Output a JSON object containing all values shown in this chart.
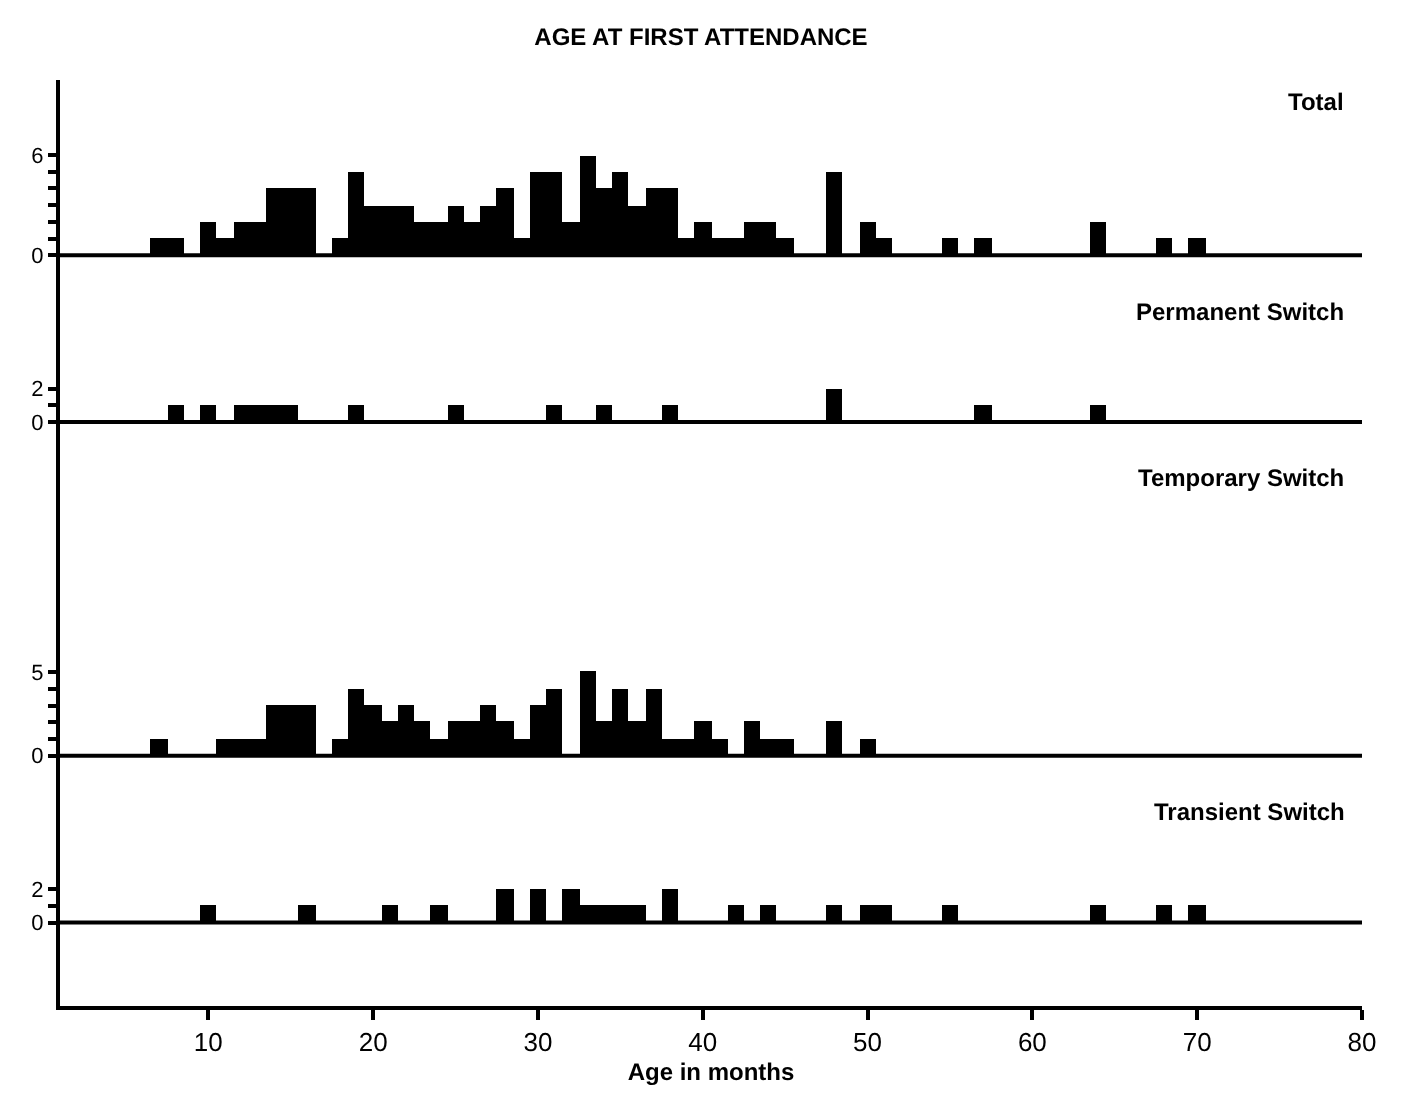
{
  "chart_data": [
    {
      "type": "histogram",
      "title": "AGE AT FIRST ATTENDANCE",
      "subtitle": "Total",
      "color": "#000000",
      "bins": [
        6.5,
        7.5,
        8.5,
        9.5,
        10.5,
        11.5,
        12.5,
        13.5,
        14.5,
        15.5,
        16.5,
        17.5,
        18.5,
        19.5,
        20.5,
        21.5,
        22.5,
        23.5,
        24.5,
        25.5,
        26.5,
        27.5,
        28.5,
        29.5,
        30.5,
        31.5,
        32.5,
        33.5,
        34.5,
        35.5,
        36.5,
        37.5,
        38.5,
        39.5,
        40.5,
        41.5,
        42.5,
        43.5,
        44.5,
        45.5,
        46.5,
        47.5,
        48.5,
        49.5,
        50.5,
        51.5,
        52.5,
        53.5,
        54.5,
        55.5,
        56.5,
        57.5,
        58.5,
        59.5,
        60.5,
        61.5,
        62.5,
        63.5,
        64.5,
        65.5,
        66.5,
        67.5,
        68.5,
        69.5,
        70.5
      ],
      "values": [
        1,
        1,
        0,
        2,
        1,
        2,
        2,
        4,
        4,
        4,
        0,
        1,
        5,
        3,
        3,
        3,
        2,
        2,
        3,
        2,
        3,
        4,
        1,
        5,
        5,
        2,
        6,
        4,
        5,
        3,
        4,
        4,
        1,
        2,
        1,
        1,
        2,
        2,
        1,
        0,
        0,
        5,
        0,
        2,
        1,
        0,
        0,
        0,
        1,
        0,
        1,
        0,
        0,
        0,
        0,
        0,
        0,
        2,
        0,
        0,
        0,
        1,
        0,
        1
      ],
      "xlim": [
        1,
        80
      ],
      "ylim": [
        -2,
        10.5
      ],
      "ref_lines": [
        {
          "axis": "y",
          "value": 0,
          "color": "#000000"
        }
      ],
      "yticks": [
        0,
        {
          "value": 1,
          "label": null
        },
        {
          "value": 2,
          "label": null
        },
        {
          "value": 3,
          "label": null
        },
        {
          "value": 4,
          "label": null
        },
        {
          "value": 5,
          "label": null
        },
        6
      ],
      "tick_labels": "y",
      "grid": false
    },
    {
      "type": "histogram",
      "subtitle": "Permanent Switch",
      "color": "#000000",
      "bins": [
        6.5,
        7.5,
        8.5,
        9.5,
        10.5,
        11.5,
        12.5,
        13.5,
        14.5,
        15.5,
        16.5,
        17.5,
        18.5,
        19.5,
        20.5,
        21.5,
        22.5,
        23.5,
        24.5,
        25.5,
        26.5,
        27.5,
        28.5,
        29.5,
        30.5,
        31.5,
        32.5,
        33.5,
        34.5,
        35.5,
        36.5,
        37.5,
        38.5,
        39.5,
        40.5,
        41.5,
        42.5,
        43.5,
        44.5,
        45.5,
        46.5,
        47.5,
        48.5,
        49.5,
        50.5,
        51.5,
        52.5,
        53.5,
        54.5,
        55.5,
        56.5,
        57.5,
        58.5,
        59.5,
        60.5,
        61.5,
        62.5,
        63.5,
        64.5,
        65.5,
        66.5,
        67.5,
        68.5,
        69.5,
        70.5
      ],
      "values": [
        0,
        1,
        0,
        1,
        0,
        1,
        1,
        1,
        1,
        0,
        0,
        0,
        1,
        0,
        0,
        0,
        0,
        0,
        1,
        0,
        0,
        0,
        0,
        0,
        1,
        0,
        0,
        1,
        0,
        0,
        0,
        1,
        0,
        0,
        0,
        0,
        0,
        0,
        0,
        0,
        0,
        2,
        0,
        0,
        0,
        0,
        0,
        0,
        0,
        0,
        1,
        0,
        0,
        0,
        0,
        0,
        0,
        1,
        0,
        0,
        0,
        0,
        0,
        0
      ],
      "xlim": [
        1,
        80
      ],
      "ylim": [
        -2,
        8
      ],
      "ref_lines": [
        {
          "axis": "y",
          "value": 0,
          "color": "#000000"
        }
      ],
      "yticks": [
        0,
        {
          "value": 1,
          "label": null
        },
        2
      ],
      "tick_labels": "y",
      "grid": false
    },
    {
      "type": "histogram",
      "subtitle": "Temporary Switch",
      "color": "#000000",
      "bins": [
        6.5,
        7.5,
        8.5,
        9.5,
        10.5,
        11.5,
        12.5,
        13.5,
        14.5,
        15.5,
        16.5,
        17.5,
        18.5,
        19.5,
        20.5,
        21.5,
        22.5,
        23.5,
        24.5,
        25.5,
        26.5,
        27.5,
        28.5,
        29.5,
        30.5,
        31.5,
        32.5,
        33.5,
        34.5,
        35.5,
        36.5,
        37.5,
        38.5,
        39.5,
        40.5,
        41.5,
        42.5,
        43.5,
        44.5,
        45.5,
        46.5,
        47.5,
        48.5,
        49.5,
        50.5,
        51.5,
        52.5,
        53.5,
        54.5,
        55.5,
        56.5,
        57.5,
        58.5,
        59.5,
        60.5,
        61.5,
        62.5,
        63.5,
        64.5,
        65.5,
        66.5,
        67.5,
        68.5,
        69.5,
        70.5
      ],
      "values": [
        1,
        0,
        0,
        0,
        1,
        1,
        1,
        3,
        3,
        3,
        0,
        1,
        4,
        3,
        2,
        3,
        2,
        1,
        2,
        2,
        3,
        2,
        1,
        3,
        4,
        0,
        5,
        2,
        4,
        2,
        4,
        1,
        1,
        2,
        1,
        0,
        2,
        1,
        1,
        0,
        0,
        2,
        0,
        1,
        0,
        0,
        0,
        0,
        0,
        0,
        0,
        0,
        0,
        0,
        0,
        0,
        0,
        0,
        0,
        0,
        0,
        0,
        0,
        0
      ],
      "xlim": [
        1,
        80
      ],
      "ylim": [
        -2,
        18
      ],
      "ref_lines": [
        {
          "axis": "y",
          "value": 0,
          "color": "#000000"
        }
      ],
      "yticks": [
        0,
        {
          "value": 1,
          "label": null
        },
        {
          "value": 2,
          "label": null
        },
        {
          "value": 3,
          "label": null
        },
        {
          "value": 4,
          "label": null
        },
        5
      ],
      "tick_labels": "y",
      "grid": false
    },
    {
      "type": "histogram",
      "subtitle": "Transient Switch",
      "xlabel": "Age in months",
      "color": "#000000",
      "bins": [
        6.5,
        7.5,
        8.5,
        9.5,
        10.5,
        11.5,
        12.5,
        13.5,
        14.5,
        15.5,
        16.5,
        17.5,
        18.5,
        19.5,
        20.5,
        21.5,
        22.5,
        23.5,
        24.5,
        25.5,
        26.5,
        27.5,
        28.5,
        29.5,
        30.5,
        31.5,
        32.5,
        33.5,
        34.5,
        35.5,
        36.5,
        37.5,
        38.5,
        39.5,
        40.5,
        41.5,
        42.5,
        43.5,
        44.5,
        45.5,
        46.5,
        47.5,
        48.5,
        49.5,
        50.5,
        51.5,
        52.5,
        53.5,
        54.5,
        55.5,
        56.5,
        57.5,
        58.5,
        59.5,
        60.5,
        61.5,
        62.5,
        63.5,
        64.5,
        65.5,
        66.5,
        67.5,
        68.5,
        69.5,
        70.5
      ],
      "values": [
        0,
        0,
        0,
        1,
        0,
        0,
        0,
        0,
        0,
        1,
        0,
        0,
        0,
        0,
        1,
        0,
        0,
        1,
        0,
        0,
        0,
        2,
        0,
        2,
        0,
        2,
        1,
        1,
        1,
        1,
        0,
        2,
        0,
        0,
        0,
        1,
        0,
        1,
        0,
        0,
        0,
        1,
        0,
        1,
        1,
        0,
        0,
        0,
        1,
        0,
        0,
        0,
        0,
        0,
        0,
        0,
        0,
        1,
        0,
        0,
        0,
        1,
        0,
        1
      ],
      "xlim": [
        1,
        80
      ],
      "xticks": [
        10,
        20,
        30,
        40,
        50,
        60,
        70,
        80
      ],
      "ylim": [
        -5,
        8
      ],
      "ref_lines": [
        {
          "axis": "y",
          "value": 0,
          "color": "#000000"
        }
      ],
      "yticks": [
        0,
        {
          "value": 1,
          "label": null
        },
        2
      ],
      "grid": false
    }
  ]
}
